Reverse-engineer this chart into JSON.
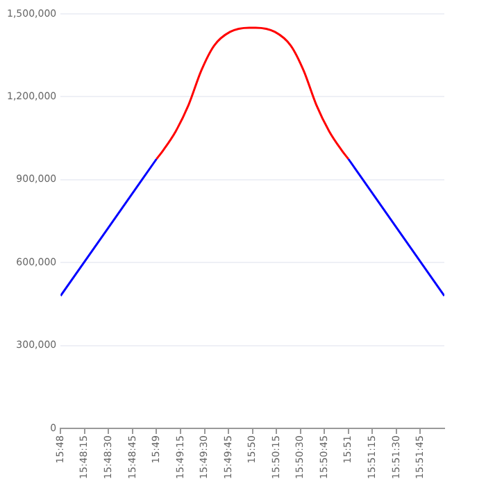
{
  "chart_data": {
    "type": "line",
    "grid": "y",
    "legend": false,
    "marker": "none",
    "xlim": [
      15.8,
      15.866667
    ],
    "ylim": [
      0,
      1500000
    ],
    "yticks": [
      {
        "value": 0,
        "label": "0"
      },
      {
        "value": 300000,
        "label": "300,000"
      },
      {
        "value": 600000,
        "label": "600,000"
      },
      {
        "value": 900000,
        "label": "900,000"
      },
      {
        "value": 1200000,
        "label": "1,200,000"
      },
      {
        "value": 1500000,
        "label": "1,500,000"
      }
    ],
    "xticks": [
      {
        "value": 15.8,
        "label": "15:48"
      },
      {
        "value": 15.804167,
        "label": "15:48:15"
      },
      {
        "value": 15.808333,
        "label": "15:48:30"
      },
      {
        "value": 15.8125,
        "label": "15:48:45"
      },
      {
        "value": 15.816667,
        "label": "15:49"
      },
      {
        "value": 15.820833,
        "label": "15:49:15"
      },
      {
        "value": 15.825,
        "label": "15:49:30"
      },
      {
        "value": 15.829167,
        "label": "15:49:45"
      },
      {
        "value": 15.833333,
        "label": "15:50"
      },
      {
        "value": 15.8375,
        "label": "15:50:15"
      },
      {
        "value": 15.841667,
        "label": "15:50:30"
      },
      {
        "value": 15.845833,
        "label": "15:50:45"
      },
      {
        "value": 15.85,
        "label": "15:51"
      },
      {
        "value": 15.854167,
        "label": "15:51:15"
      },
      {
        "value": 15.858333,
        "label": "15:51:30"
      },
      {
        "value": 15.8625,
        "label": "15:51:45"
      }
    ],
    "series": [
      {
        "color": "#0000ff",
        "x": [
          15.8,
          15.816667,
          15.833333,
          15.85,
          15.866667
        ],
        "values": [
          480000,
          975000,
          null,
          975000,
          480000
        ]
      },
      {
        "color": "#ff0000",
        "x": [
          15.816667,
          15.817778,
          15.82,
          15.822222,
          15.824444,
          15.826667,
          15.829444,
          15.832778,
          15.833333,
          15.833889,
          15.837222,
          15.84,
          15.842222,
          15.844444,
          15.846667,
          15.848889,
          15.85
        ],
        "values": [
          975000,
          1005000,
          1075000,
          1170000,
          1295000,
          1385000,
          1435000,
          1450000,
          1450000,
          1450000,
          1435000,
          1385000,
          1295000,
          1170000,
          1075000,
          1005000,
          975000
        ]
      }
    ]
  }
}
